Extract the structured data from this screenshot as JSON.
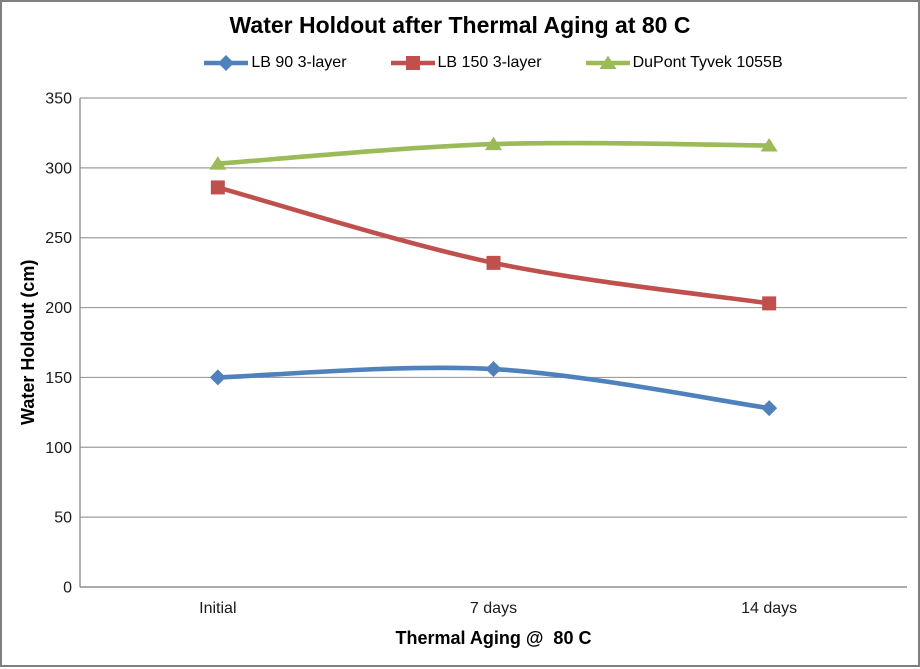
{
  "frame": {
    "border_color": "#7f7f7f",
    "background": "#ffffff"
  },
  "chart_data": {
    "type": "line",
    "title": "Water Holdout after Thermal Aging at 80 C",
    "xlabel": "Thermal Aging @  80 C",
    "ylabel": "Water Holdout (cm)",
    "categories": [
      "Initial",
      "7 days",
      "14 days"
    ],
    "series": [
      {
        "name": "LB 90 3-layer",
        "marker": "diamond",
        "color": "#4F81BD",
        "values": [
          150,
          156,
          128
        ]
      },
      {
        "name": "LB 150 3-layer",
        "marker": "square",
        "color": "#C0504D",
        "values": [
          286,
          232,
          203
        ]
      },
      {
        "name": "DuPont Tyvek 1055B",
        "marker": "triangle",
        "color": "#9BBB59",
        "values": [
          303,
          317,
          316
        ]
      }
    ],
    "ylim": [
      0,
      350
    ],
    "yticks": [
      0,
      50,
      100,
      150,
      200,
      250,
      300,
      350
    ],
    "grid": true,
    "smoothed_lines": true,
    "legend_position": "top",
    "gridline_color": "#9d9d9d",
    "axis_line_color": "#8a8a8a",
    "text_color": "#1a1a1a"
  }
}
